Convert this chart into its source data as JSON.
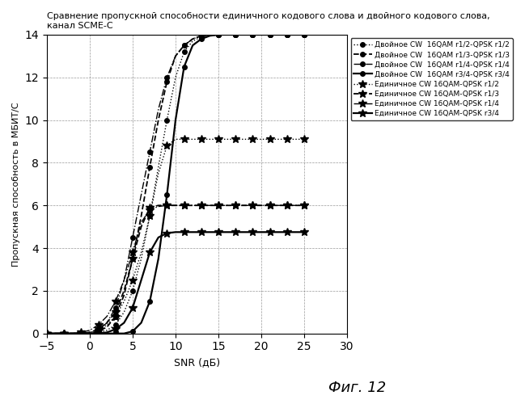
{
  "title": "Сравнение пропускной способности единичного кодового слова и двойного кодового слова,\nканал SCME-C",
  "xlabel": "SNR (дБ)",
  "ylabel": "Пропускная способность в МБИТ/С",
  "figcaption": "Фиг. 12",
  "xlim": [
    -5,
    30
  ],
  "ylim": [
    0,
    14
  ],
  "xticks": [
    -5,
    0,
    5,
    10,
    15,
    20,
    25,
    30
  ],
  "yticks": [
    0,
    2,
    4,
    6,
    8,
    10,
    12,
    14
  ],
  "series": [
    {
      "label": "Двойное CW  16QAM r1/2-QPSK r1/2",
      "linestyle": "dotted",
      "marker": "o",
      "color": "black",
      "markersize": 4,
      "linewidth": 1.0,
      "markevery": 2,
      "x": [
        -5,
        -4,
        -3,
        -2,
        -1,
        0,
        1,
        2,
        3,
        4,
        5,
        6,
        7,
        8,
        9,
        10,
        11,
        12,
        13,
        14,
        15,
        16,
        17,
        18,
        19,
        20,
        21,
        22,
        23,
        24,
        25
      ],
      "y": [
        0,
        0,
        0,
        0,
        0,
        0,
        0.05,
        0.15,
        0.4,
        1.0,
        2.0,
        3.5,
        5.5,
        7.8,
        10.0,
        12.0,
        13.2,
        13.7,
        13.9,
        13.95,
        14.0,
        14.0,
        14.0,
        14.0,
        14.0,
        14.0,
        14.0,
        14.0,
        14.0,
        14.0,
        14.0
      ]
    },
    {
      "label": "Двойное CW  16QAM r1/3-QPSK r1/3",
      "linestyle": "dashed",
      "marker": "o",
      "color": "black",
      "markersize": 4,
      "linewidth": 1.3,
      "markevery": 2,
      "x": [
        -5,
        -4,
        -3,
        -2,
        -1,
        0,
        1,
        2,
        3,
        4,
        5,
        6,
        7,
        8,
        9,
        10,
        11,
        12,
        13,
        14,
        15,
        16,
        17,
        18,
        19,
        20,
        21,
        22,
        23,
        24,
        25
      ],
      "y": [
        0,
        0,
        0,
        0,
        0,
        0,
        0.1,
        0.3,
        0.8,
        1.8,
        3.5,
        5.5,
        7.8,
        10.0,
        11.8,
        13.0,
        13.5,
        13.8,
        13.95,
        14.0,
        14.0,
        14.0,
        14.0,
        14.0,
        14.0,
        14.0,
        14.0,
        14.0,
        14.0,
        14.0,
        14.0
      ]
    },
    {
      "label": "Двойное CW  16QAM r1/4-QPSK r1/4",
      "linestyle": "dashdot",
      "marker": "o",
      "color": "black",
      "markersize": 4,
      "linewidth": 1.0,
      "markevery": 2,
      "x": [
        -5,
        -4,
        -3,
        -2,
        -1,
        0,
        1,
        2,
        3,
        4,
        5,
        6,
        7,
        8,
        9,
        10,
        11,
        12,
        13,
        14,
        15,
        16,
        17,
        18,
        19,
        20,
        21,
        22,
        23,
        24,
        25
      ],
      "y": [
        0,
        0,
        0,
        0,
        0,
        0.05,
        0.15,
        0.5,
        1.2,
        2.5,
        4.5,
        6.5,
        8.5,
        10.5,
        12.0,
        13.0,
        13.5,
        13.8,
        13.95,
        14.0,
        14.0,
        14.0,
        14.0,
        14.0,
        14.0,
        14.0,
        14.0,
        14.0,
        14.0,
        14.0,
        14.0
      ]
    },
    {
      "label": "Двойное CW  16QAM r3/4-QPSK r3/4",
      "linestyle": "solid",
      "marker": "o",
      "color": "black",
      "markersize": 4,
      "linewidth": 1.6,
      "markevery": 2,
      "x": [
        -5,
        -4,
        -3,
        -2,
        -1,
        0,
        1,
        2,
        3,
        4,
        5,
        6,
        7,
        8,
        9,
        10,
        11,
        12,
        13,
        14,
        15,
        16,
        17,
        18,
        19,
        20,
        21,
        22,
        23,
        24,
        25
      ],
      "y": [
        0,
        0,
        0,
        0,
        0,
        0,
        0,
        0,
        0,
        0,
        0.1,
        0.5,
        1.5,
        3.5,
        6.5,
        10.0,
        12.5,
        13.5,
        13.8,
        13.95,
        14.0,
        14.0,
        14.0,
        14.0,
        14.0,
        14.0,
        14.0,
        14.0,
        14.0,
        14.0,
        14.0
      ]
    },
    {
      "label": "Единичное CW 16QAM-QPSK r1/2",
      "linestyle": "dotted",
      "marker": "*",
      "color": "black",
      "markersize": 7,
      "linewidth": 1.0,
      "markevery": 2,
      "x": [
        -5,
        -4,
        -3,
        -2,
        -1,
        0,
        1,
        2,
        3,
        4,
        5,
        6,
        7,
        8,
        9,
        10,
        11,
        12,
        13,
        14,
        15,
        16,
        17,
        18,
        19,
        20,
        21,
        22,
        23,
        24,
        25
      ],
      "y": [
        0,
        0,
        0,
        0,
        0,
        0.05,
        0.15,
        0.4,
        0.8,
        1.5,
        2.5,
        3.8,
        5.5,
        7.5,
        8.8,
        9.1,
        9.1,
        9.1,
        9.1,
        9.1,
        9.1,
        9.1,
        9.1,
        9.1,
        9.1,
        9.1,
        9.1,
        9.1,
        9.1,
        9.1,
        9.1
      ]
    },
    {
      "label": "Единичное CW 16QAM-QPSK r1/3",
      "linestyle": "dashed",
      "marker": "*",
      "color": "black",
      "markersize": 7,
      "linewidth": 1.3,
      "markevery": 2,
      "x": [
        -5,
        -4,
        -3,
        -2,
        -1,
        0,
        1,
        2,
        3,
        4,
        5,
        6,
        7,
        8,
        9,
        10,
        11,
        12,
        13,
        14,
        15,
        16,
        17,
        18,
        19,
        20,
        21,
        22,
        23,
        24,
        25
      ],
      "y": [
        0,
        0,
        0,
        0,
        0,
        0.05,
        0.2,
        0.5,
        1.0,
        2.0,
        3.5,
        5.0,
        5.9,
        6.0,
        6.0,
        6.0,
        6.0,
        6.0,
        6.0,
        6.0,
        6.0,
        6.0,
        6.0,
        6.0,
        6.0,
        6.0,
        6.0,
        6.0,
        6.0,
        6.0,
        6.0
      ]
    },
    {
      "label": "Единичное CW 16QAM-QPSK r1/4",
      "linestyle": "dashdot",
      "marker": "*",
      "color": "black",
      "markersize": 7,
      "linewidth": 1.0,
      "markevery": 2,
      "x": [
        -5,
        -4,
        -3,
        -2,
        -1,
        0,
        1,
        2,
        3,
        4,
        5,
        6,
        7,
        8,
        9,
        10,
        11,
        12,
        13,
        14,
        15,
        16,
        17,
        18,
        19,
        20,
        21,
        22,
        23,
        24,
        25
      ],
      "y": [
        0,
        0,
        0,
        0,
        0.05,
        0.15,
        0.4,
        0.8,
        1.5,
        2.5,
        3.8,
        5.2,
        5.8,
        5.95,
        6.0,
        6.0,
        6.0,
        6.0,
        6.0,
        6.0,
        6.0,
        6.0,
        6.0,
        6.0,
        6.0,
        6.0,
        6.0,
        6.0,
        6.0,
        6.0,
        6.0
      ]
    },
    {
      "label": "Единичное CW 16QAM-QPSK r3/4",
      "linestyle": "solid",
      "marker": "*",
      "color": "black",
      "markersize": 7,
      "linewidth": 1.6,
      "markevery": 2,
      "x": [
        -5,
        -4,
        -3,
        -2,
        -1,
        0,
        1,
        2,
        3,
        4,
        5,
        6,
        7,
        8,
        9,
        10,
        11,
        12,
        13,
        14,
        15,
        16,
        17,
        18,
        19,
        20,
        21,
        22,
        23,
        24,
        25
      ],
      "y": [
        0,
        0,
        0,
        0,
        0,
        0,
        0,
        0.05,
        0.2,
        0.5,
        1.2,
        2.5,
        3.8,
        4.5,
        4.7,
        4.75,
        4.75,
        4.75,
        4.75,
        4.75,
        4.75,
        4.75,
        4.75,
        4.75,
        4.75,
        4.75,
        4.75,
        4.75,
        4.75,
        4.75,
        4.75
      ]
    }
  ]
}
